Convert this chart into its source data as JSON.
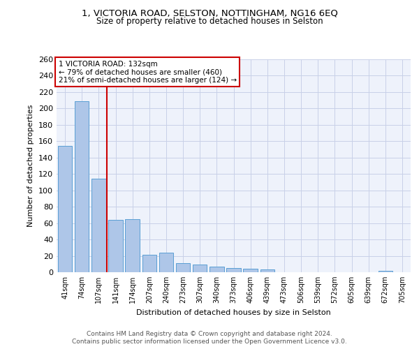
{
  "title1": "1, VICTORIA ROAD, SELSTON, NOTTINGHAM, NG16 6EQ",
  "title2": "Size of property relative to detached houses in Selston",
  "xlabel": "Distribution of detached houses by size in Selston",
  "ylabel": "Number of detached properties",
  "bar_labels": [
    "41sqm",
    "74sqm",
    "107sqm",
    "141sqm",
    "174sqm",
    "207sqm",
    "240sqm",
    "273sqm",
    "307sqm",
    "340sqm",
    "373sqm",
    "406sqm",
    "439sqm",
    "473sqm",
    "506sqm",
    "539sqm",
    "572sqm",
    "605sqm",
    "639sqm",
    "672sqm",
    "705sqm"
  ],
  "bar_values": [
    154,
    209,
    114,
    64,
    65,
    21,
    24,
    11,
    9,
    7,
    5,
    4,
    3,
    0,
    0,
    0,
    0,
    0,
    0,
    2,
    0
  ],
  "bar_color": "#aec6e8",
  "bar_edge_color": "#5a9fd4",
  "background_color": "#eef2fb",
  "grid_color": "#c8d0e8",
  "vline_x": 2.5,
  "vline_color": "#cc0000",
  "annotation_text": "1 VICTORIA ROAD: 132sqm\n← 79% of detached houses are smaller (460)\n21% of semi-detached houses are larger (124) →",
  "annotation_box_color": "#ffffff",
  "annotation_box_edge": "#cc0000",
  "footer1": "Contains HM Land Registry data © Crown copyright and database right 2024.",
  "footer2": "Contains public sector information licensed under the Open Government Licence v3.0.",
  "ylim": [
    0,
    260
  ],
  "yticks": [
    0,
    20,
    40,
    60,
    80,
    100,
    120,
    140,
    160,
    180,
    200,
    220,
    240,
    260
  ],
  "title1_fontsize": 9.5,
  "title2_fontsize": 8.5,
  "ylabel_fontsize": 8,
  "xlabel_fontsize": 8,
  "tick_fontsize": 8,
  "xtick_fontsize": 7,
  "annotation_fontsize": 7.5,
  "footer_fontsize": 6.5
}
